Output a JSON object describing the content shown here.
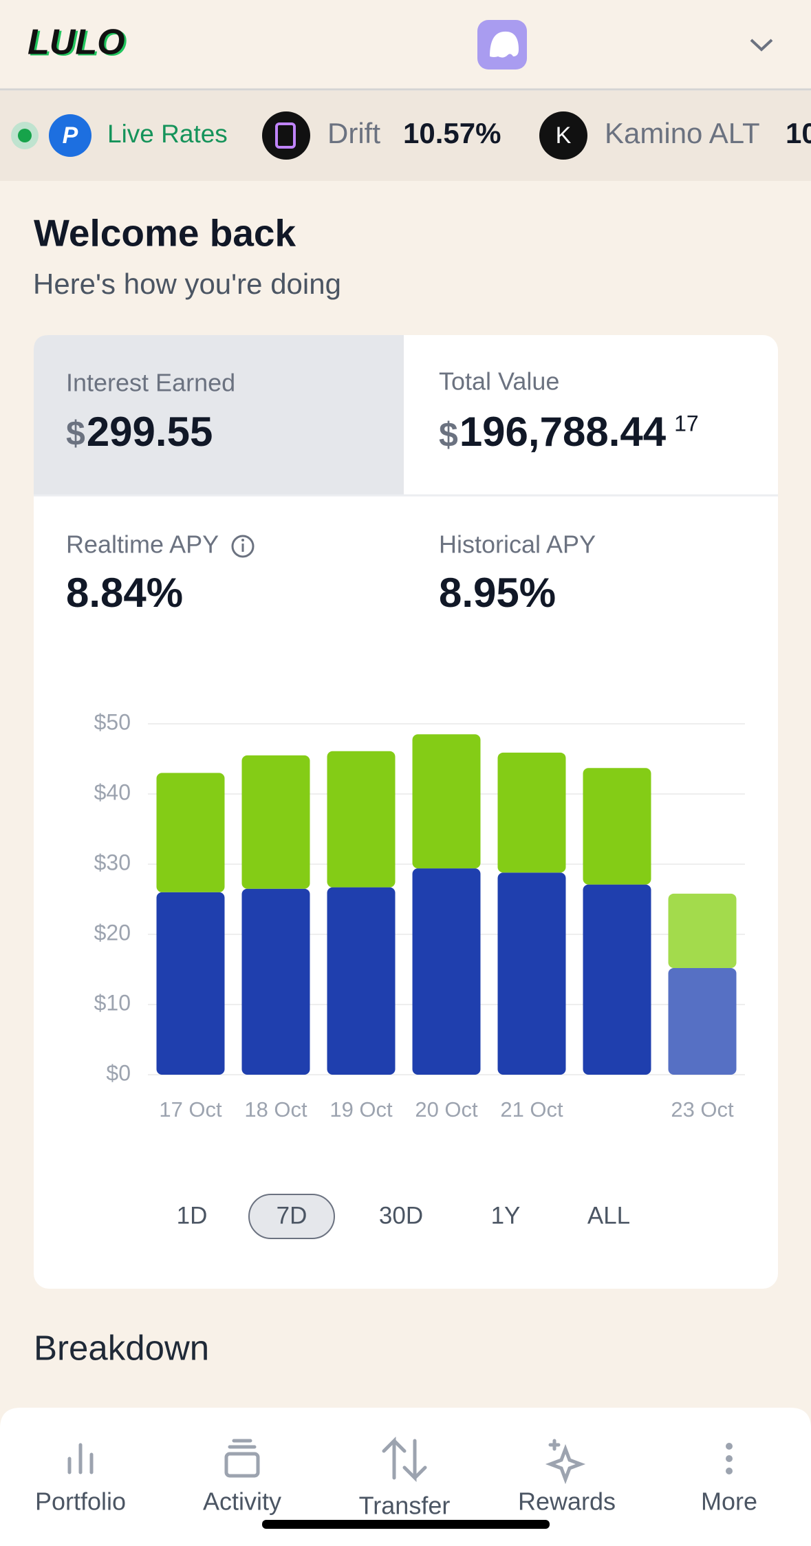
{
  "header": {
    "logo": "LULO"
  },
  "ticker": {
    "label": "Live Rates",
    "items": [
      {
        "name": "Drift",
        "rate": "10.57%"
      },
      {
        "name": "Kamino ALT",
        "rate": "10"
      }
    ]
  },
  "welcome": {
    "title": "Welcome back",
    "subtitle": "Here's how you're doing"
  },
  "stats": {
    "interest_earned": {
      "label": "Interest Earned",
      "currency": "$",
      "value": "299.55"
    },
    "total_value": {
      "label": "Total Value",
      "currency": "$",
      "value": "196,788.44",
      "superscript": "17"
    },
    "realtime_apy": {
      "label": "Realtime APY",
      "value": "8.84%"
    },
    "historical_apy": {
      "label": "Historical APY",
      "value": "8.95%"
    }
  },
  "chart_data": {
    "type": "bar",
    "stacked": true,
    "categories": [
      "17 Oct",
      "18 Oct",
      "19 Oct",
      "20 Oct",
      "21 Oct",
      null,
      "23 Oct"
    ],
    "series": [
      {
        "colors": [
          "#1f3fae",
          "#1f3fae",
          "#1f3fae",
          "#1f3fae",
          "#1f3fae",
          "#1f3fae",
          "#5670c4"
        ],
        "values": [
          26.0,
          26.5,
          26.7,
          29.4,
          28.8,
          27.1,
          15.2
        ]
      },
      {
        "colors": [
          "#84cc16",
          "#84cc16",
          "#84cc16",
          "#84cc16",
          "#84cc16",
          "#84cc16",
          "#a3db4c"
        ],
        "values": [
          17.0,
          19.0,
          19.4,
          19.1,
          17.1,
          16.6,
          10.6
        ]
      }
    ],
    "ylim": [
      0,
      50
    ],
    "yticks": [
      {
        "value": 0,
        "label": "$0"
      },
      {
        "value": 10,
        "label": "$10"
      },
      {
        "value": 20,
        "label": "$20"
      },
      {
        "value": 30,
        "label": "$30"
      },
      {
        "value": 40,
        "label": "$40"
      },
      {
        "value": 50,
        "label": "$50"
      }
    ],
    "grid": true
  },
  "range": {
    "options": [
      "1D",
      "7D",
      "30D",
      "1Y",
      "ALL"
    ],
    "selected": 1
  },
  "breakdown": {
    "title": "Breakdown"
  },
  "nav": {
    "items": [
      "Portfolio",
      "Activity",
      "Transfer",
      "Rewards",
      "More"
    ]
  }
}
